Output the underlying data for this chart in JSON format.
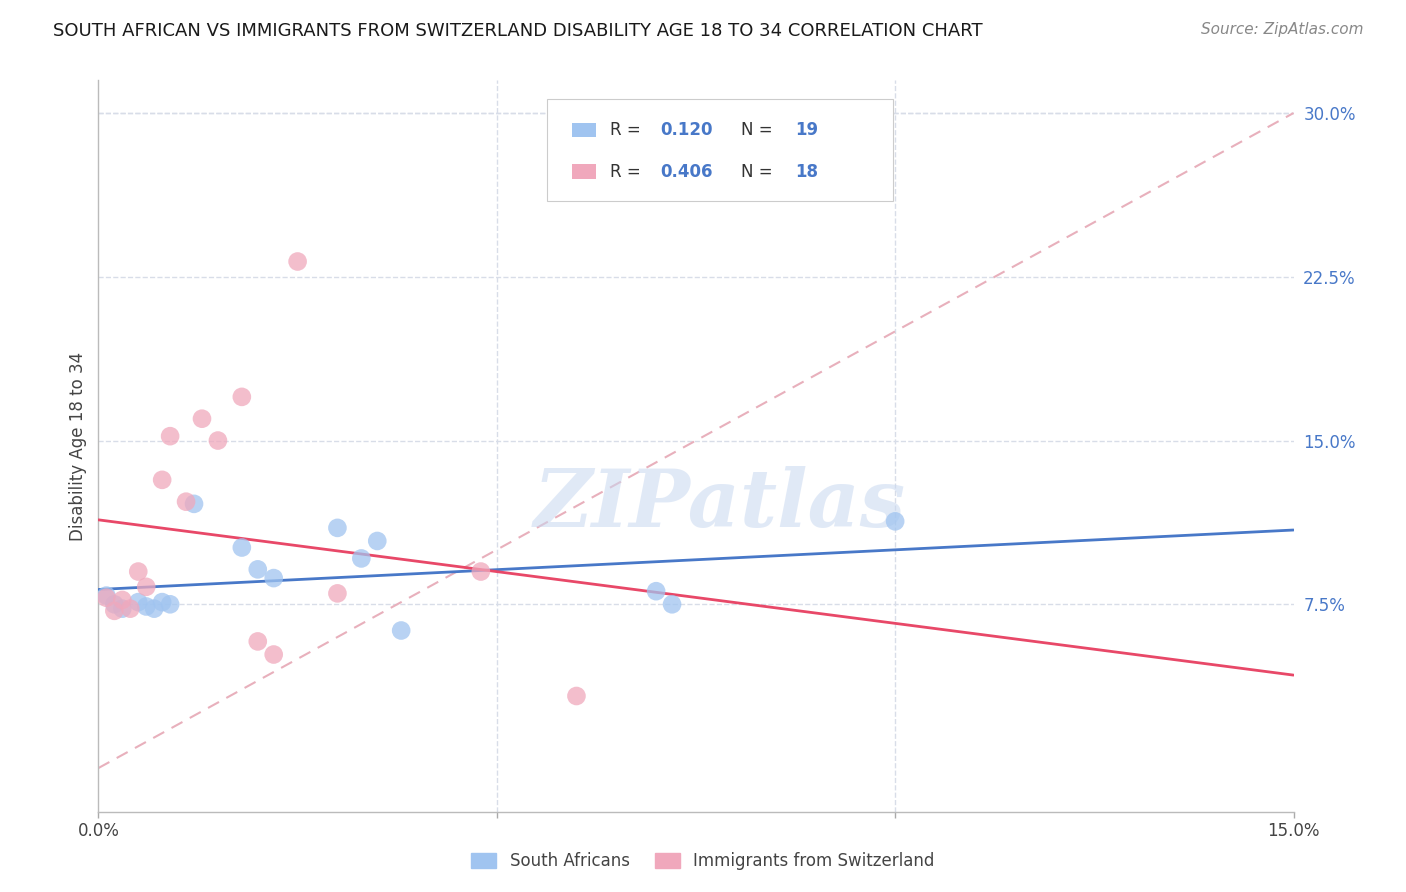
{
  "title": "SOUTH AFRICAN VS IMMIGRANTS FROM SWITZERLAND DISABILITY AGE 18 TO 34 CORRELATION CHART",
  "source": "Source: ZipAtlas.com",
  "ylabel": "Disability Age 18 to 34",
  "xlim": [
    0.0,
    0.15
  ],
  "ylim": [
    -0.02,
    0.315
  ],
  "background_color": "#ffffff",
  "grid_color": "#d8dde8",
  "blue_color": "#a0c4f0",
  "pink_color": "#f0a8bc",
  "blue_line_color": "#4878c8",
  "pink_line_color": "#e84868",
  "diag_line_color": "#e8b0bc",
  "watermark_color": "#c8d8f0",
  "legend_label1": "South Africans",
  "legend_label2": "Immigrants from Switzerland",
  "blue_R": 0.12,
  "pink_R": 0.406,
  "blue_N": 19,
  "pink_N": 18,
  "blue_x": [
    0.001,
    0.002,
    0.003,
    0.005,
    0.006,
    0.007,
    0.008,
    0.009,
    0.012,
    0.018,
    0.02,
    0.022,
    0.03,
    0.033,
    0.035,
    0.038,
    0.07,
    0.072,
    0.1
  ],
  "blue_y": [
    0.079,
    0.075,
    0.073,
    0.076,
    0.074,
    0.073,
    0.076,
    0.075,
    0.121,
    0.101,
    0.091,
    0.087,
    0.11,
    0.096,
    0.104,
    0.063,
    0.081,
    0.075,
    0.113
  ],
  "pink_x": [
    0.001,
    0.002,
    0.003,
    0.004,
    0.005,
    0.006,
    0.008,
    0.009,
    0.011,
    0.013,
    0.015,
    0.018,
    0.02,
    0.022,
    0.025,
    0.03,
    0.048,
    0.06
  ],
  "pink_y": [
    0.078,
    0.072,
    0.077,
    0.073,
    0.09,
    0.083,
    0.132,
    0.152,
    0.122,
    0.16,
    0.15,
    0.17,
    0.058,
    0.052,
    0.232,
    0.08,
    0.09,
    0.033
  ],
  "ytick_positions": [
    0.075,
    0.15,
    0.225,
    0.3
  ],
  "ytick_labels_right": [
    "7.5%",
    "15.0%",
    "22.5%",
    "30.0%"
  ],
  "xtick_positions": [
    0.0,
    0.05,
    0.1,
    0.15
  ],
  "xtick_labels": [
    "0.0%",
    "",
    "",
    "15.0%"
  ]
}
